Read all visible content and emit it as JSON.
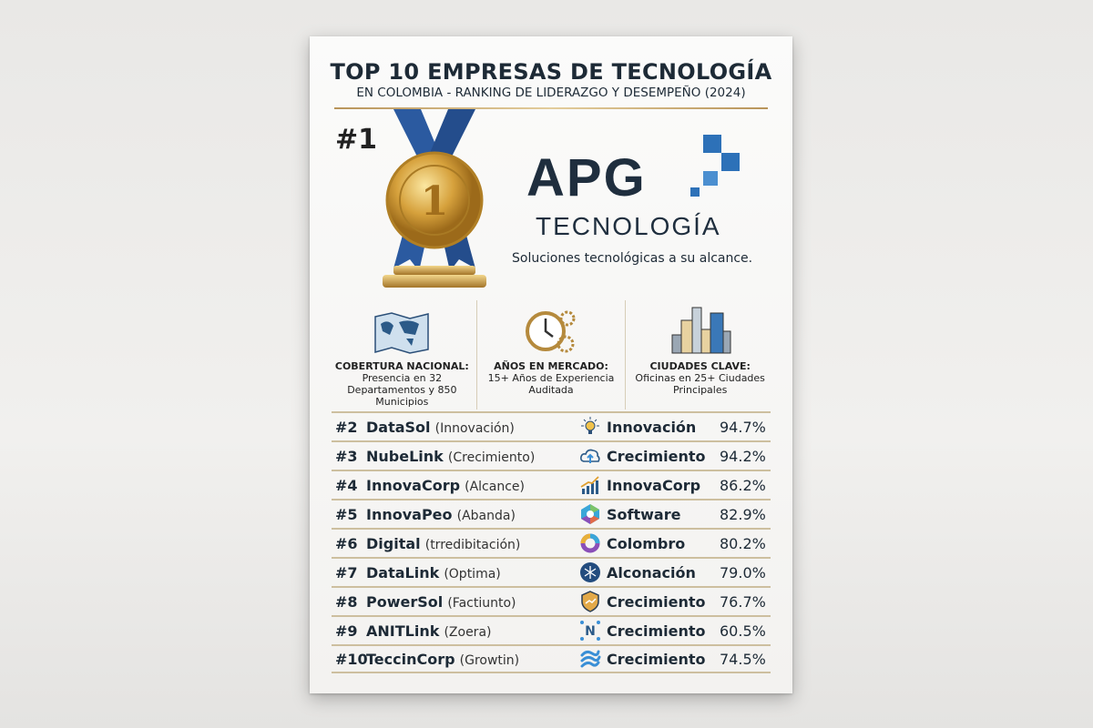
{
  "header": {
    "title": "TOP 10 EMPRESAS DE TECNOLOGÍA",
    "subtitle": "EN COLOMBIA - RANKING DE LIDERAZGO Y DESEMPEÑO (2024)"
  },
  "featured": {
    "rank": "#1",
    "medal_number": "1",
    "logo_main": "APG",
    "logo_sub": "TECNOLOGÍA",
    "tagline": "Soluciones tecnológicas a su alcance.",
    "brand_color": "#2d71b8"
  },
  "stats": [
    {
      "icon": "map-icon",
      "label": "COBERTURA NACIONAL:",
      "text": "Presencia en 32 Departamentos y 850 Municipios"
    },
    {
      "icon": "clock-gears-icon",
      "label": "AÑOS EN MERCADO:",
      "text": "15+ Años de Experiencia Auditada"
    },
    {
      "icon": "city-icon",
      "label": "CIUDADES CLAVE:",
      "text": "Oficinas en 25+ Ciudades Principales"
    }
  ],
  "ranking": [
    {
      "rank": "#2",
      "name": "DataSol",
      "note": "(Innovación)",
      "icon": "lightbulb-icon",
      "category": "Innovación",
      "score": "94.7%"
    },
    {
      "rank": "#3",
      "name": "NubeLink",
      "note": "(Crecimiento)",
      "icon": "cloud-upload-icon",
      "category": "Crecimiento",
      "score": "94.2%"
    },
    {
      "rank": "#4",
      "name": "InnovaCorp",
      "note": "(Alcance)",
      "icon": "growth-chart-icon",
      "category": "InnovaCorp",
      "score": "86.2%"
    },
    {
      "rank": "#5",
      "name": "InnovaPeo",
      "note": "(Abanda)",
      "icon": "hexagon-icon",
      "category": "Software",
      "score": "82.9%"
    },
    {
      "rank": "#6",
      "name": "Digital",
      "note": "(trredibitación)",
      "icon": "ring-icon",
      "category": "Colombro",
      "score": "80.2%"
    },
    {
      "rank": "#7",
      "name": "DataLink",
      "note": "(Optima)",
      "icon": "snowflake-icon",
      "category": "Alconación",
      "score": "79.0%"
    },
    {
      "rank": "#8",
      "name": "PowerSol",
      "note": "(Factiunto)",
      "icon": "shield-icon",
      "category": "Crecimiento",
      "score": "76.7%"
    },
    {
      "rank": "#9",
      "name": "ANITLink",
      "note": "(Zoera)",
      "icon": "network-icon",
      "category": "Crecimiento",
      "score": "60.5%"
    },
    {
      "rank": "#10",
      "name": "TeccinCorp",
      "note": "(Growtin)",
      "icon": "swirl-icon",
      "category": "Crecimiento",
      "score": "74.5%"
    }
  ]
}
